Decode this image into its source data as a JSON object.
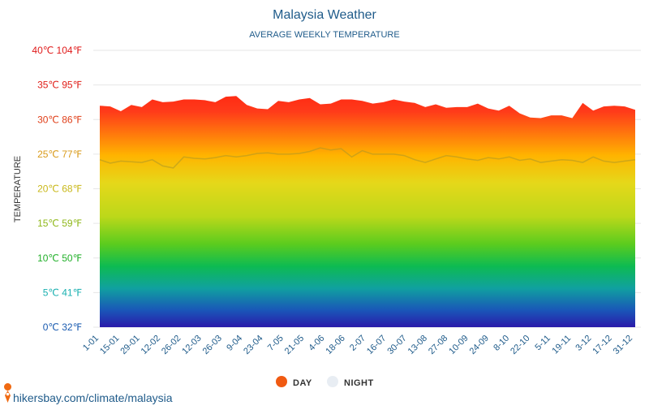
{
  "chart_data": {
    "type": "area",
    "title": "Malaysia Weather",
    "subtitle": "AVERAGE WEEKLY TEMPERATURE",
    "ylabel": "TEMPERATURE",
    "ylim": [
      0,
      40
    ],
    "y_ticks": [
      {
        "value": 0,
        "label": "0℃ 32℉",
        "color": "#1a5bb0"
      },
      {
        "value": 5,
        "label": "5℃ 41℉",
        "color": "#1ab0b0"
      },
      {
        "value": 10,
        "label": "10℃ 50℉",
        "color": "#22b02a"
      },
      {
        "value": 15,
        "label": "15℃ 59℉",
        "color": "#8fb81a"
      },
      {
        "value": 20,
        "label": "20℃ 68℉",
        "color": "#c9b81a"
      },
      {
        "value": 25,
        "label": "25℃ 77℉",
        "color": "#d99a1a"
      },
      {
        "value": 30,
        "label": "30℃ 86℉",
        "color": "#e0401a"
      },
      {
        "value": 35,
        "label": "35℃ 95℉",
        "color": "#e0201a"
      },
      {
        "value": 40,
        "label": "40℃ 104℉",
        "color": "#e01a1a"
      }
    ],
    "x_ticks": [
      "1-01",
      "15-01",
      "29-01",
      "12-02",
      "26-02",
      "12-03",
      "26-03",
      "9-04",
      "23-04",
      "7-05",
      "21-05",
      "4-06",
      "18-06",
      "2-07",
      "16-07",
      "30-07",
      "13-08",
      "27-08",
      "10-09",
      "24-09",
      "8-10",
      "22-10",
      "5-11",
      "19-11",
      "3-12",
      "17-12",
      "31-12"
    ],
    "series": [
      {
        "name": "DAY",
        "color": "#f05a12",
        "values": [
          32.0,
          31.9,
          31.2,
          32.1,
          31.8,
          32.9,
          32.5,
          32.6,
          32.9,
          32.9,
          32.8,
          32.5,
          33.3,
          33.4,
          32.1,
          31.6,
          31.5,
          32.7,
          32.5,
          32.9,
          33.1,
          32.2,
          32.3,
          32.9,
          32.9,
          32.7,
          32.3,
          32.5,
          32.9,
          32.6,
          32.4,
          31.8,
          32.2,
          31.7,
          31.8,
          31.8,
          32.3,
          31.6,
          31.3,
          32.0,
          30.9,
          30.3,
          30.2,
          30.6,
          30.6,
          30.2,
          32.4,
          31.3,
          31.9,
          32.0,
          31.9,
          31.4
        ]
      },
      {
        "name": "NIGHT",
        "color": "#e8edf3",
        "values": [
          24.2,
          23.7,
          24.0,
          23.9,
          23.8,
          24.2,
          23.3,
          23.0,
          24.6,
          24.4,
          24.3,
          24.5,
          24.8,
          24.6,
          24.8,
          25.1,
          25.2,
          25.0,
          25.0,
          25.1,
          25.4,
          25.9,
          25.6,
          25.8,
          24.6,
          25.5,
          25.0,
          25.0,
          25.0,
          24.8,
          24.2,
          23.8,
          24.3,
          24.8,
          24.6,
          24.3,
          24.1,
          24.5,
          24.3,
          24.6,
          24.1,
          24.3,
          23.8,
          24.0,
          24.2,
          24.1,
          23.8,
          24.6,
          24.0,
          23.8,
          24.0,
          24.2
        ]
      }
    ],
    "grid": true,
    "legend": "bottom-center"
  },
  "footer": {
    "site": "hikersbay.com/climate/malaysia",
    "pin_icon": "location-pin-icon"
  }
}
